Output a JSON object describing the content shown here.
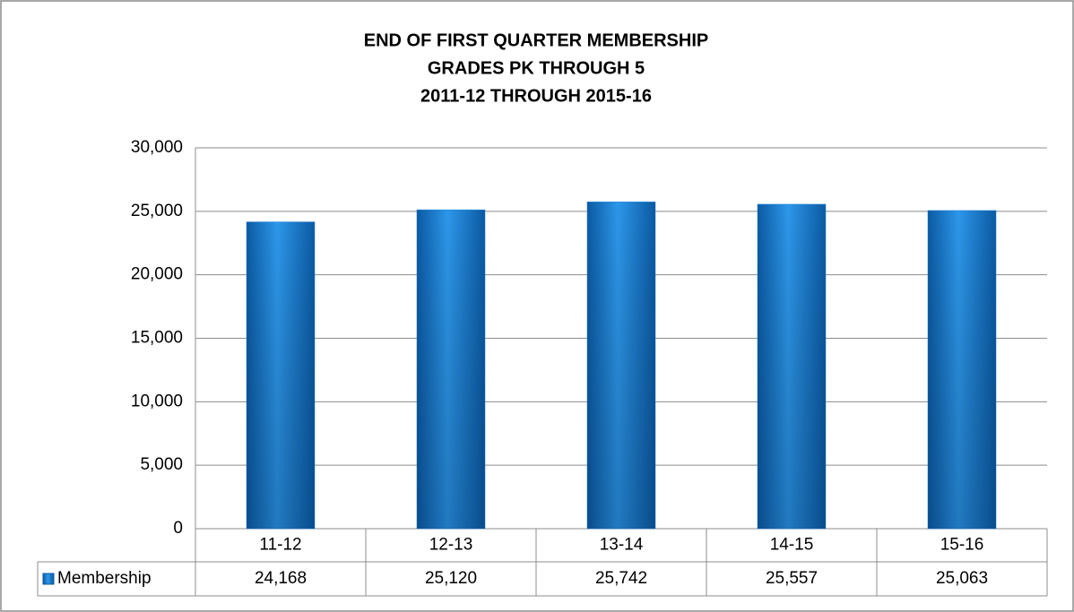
{
  "chart_data": {
    "type": "bar",
    "title": [
      "END OF FIRST QUARTER MEMBERSHIP",
      "GRADES PK THROUGH 5",
      "2011-12 THROUGH 2015-16"
    ],
    "categories": [
      "11-12",
      "12-13",
      "13-14",
      "14-15",
      "15-16"
    ],
    "series": [
      {
        "name": "Membership",
        "color": "#1a7fd6",
        "values": [
          24168,
          25120,
          25742,
          25557,
          25063
        ],
        "value_labels": [
          "24,168",
          "25,120",
          "25,742",
          "25,557",
          "25,063"
        ]
      }
    ],
    "ylim": [
      0,
      30000
    ],
    "yticks": [
      0,
      {
        "value": 5000,
        "label": "5,000"
      },
      {
        "value": 10000,
        "label": "10,000"
      },
      {
        "value": 15000,
        "label": "15,000"
      },
      {
        "value": 20000,
        "label": "20,000"
      },
      {
        "value": 25000,
        "label": "25,000"
      },
      {
        "value": 30000,
        "label": "30,000"
      }
    ],
    "grid": true
  }
}
